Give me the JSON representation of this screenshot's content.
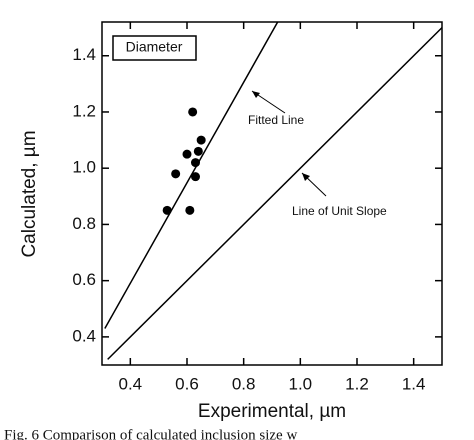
{
  "chart_data": {
    "type": "scatter",
    "x_label": "Experimental, µm",
    "y_label": "Calculated, µm",
    "annotations": [
      "Diameter",
      "Fitted Line",
      "Line of Unit Slope"
    ],
    "caption": "Fig. 6   Comparison of calculated inclusion size w",
    "xlim": [
      0.3,
      1.5
    ],
    "ylim": [
      0.3,
      1.52
    ],
    "xticks": [
      0.4,
      0.6,
      0.8,
      {
        "value": 1,
        "label": "1.0"
      },
      1.2,
      1.4
    ],
    "yticks": [
      0.4,
      0.6,
      0.8,
      {
        "value": 1,
        "label": "1.0"
      },
      1.2,
      1.4
    ],
    "series": [
      {
        "style": "markers",
        "color": "#000000",
        "x": [
          0.53,
          0.61,
          0.56,
          0.6,
          0.63,
          0.63,
          0.62,
          0.64,
          0.65
        ],
        "values": [
          0.85,
          0.85,
          0.98,
          1.05,
          1.02,
          0.97,
          1.2,
          1.06,
          1.1
        ]
      },
      {
        "style": "line",
        "color": "#000000",
        "x": [
          0.31,
          0.92
        ],
        "values": [
          0.43,
          1.52
        ]
      },
      {
        "style": "line",
        "color": "#000000",
        "x": [
          0.32,
          1.5
        ],
        "values": [
          0.32,
          1.5
        ]
      }
    ]
  }
}
